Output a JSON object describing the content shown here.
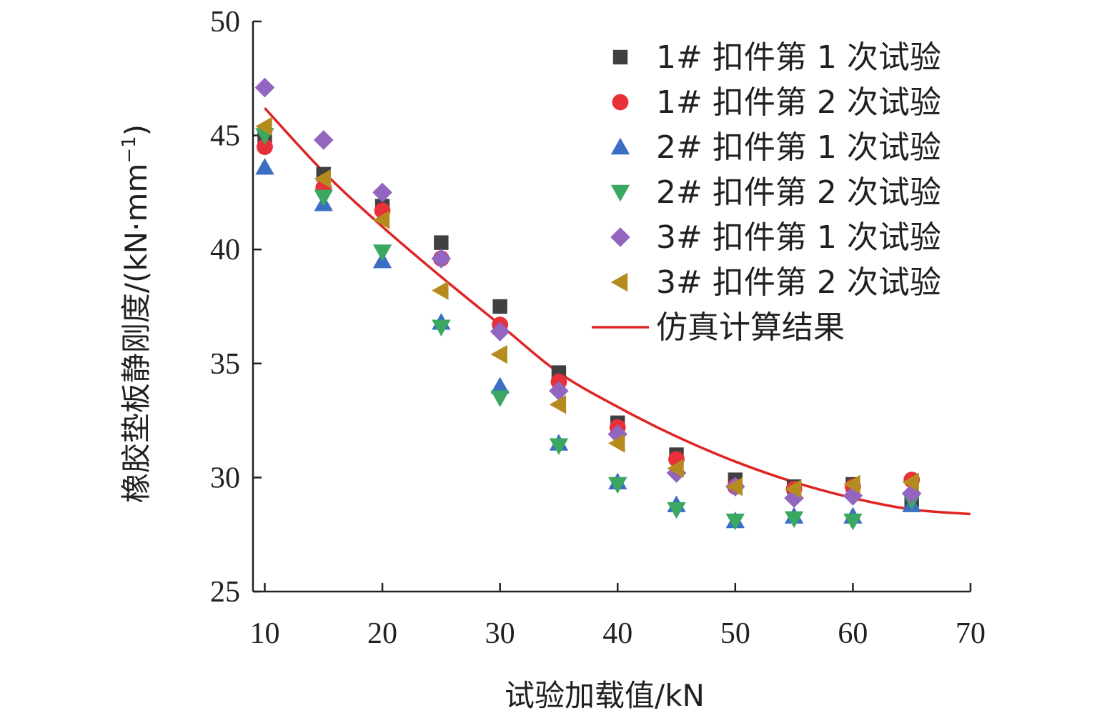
{
  "chart_data": {
    "type": "scatter",
    "xlabel": "试验加载值/kN",
    "ylabel_main": "橡胶垫板静刚度/(kN·mm",
    "ylabel_sup": "−1",
    "ylabel_close": ")",
    "xlim": [
      9,
      70
    ],
    "ylim": [
      25,
      50
    ],
    "xticks": [
      10,
      20,
      30,
      40,
      50,
      60,
      70
    ],
    "yticks": [
      25,
      30,
      35,
      40,
      45,
      50
    ],
    "legend_position": "top-right",
    "x": [
      10,
      15,
      20,
      25,
      30,
      35,
      40,
      45,
      50,
      55,
      60,
      65
    ],
    "series": [
      {
        "name": "1# 扣件第 1 次试验",
        "marker": "square",
        "color": "#404040",
        "values": [
          45.0,
          43.3,
          41.9,
          40.3,
          37.5,
          34.6,
          32.4,
          31.0,
          29.9,
          29.6,
          29.7,
          29.0
        ]
      },
      {
        "name": "1# 扣件第 2 次试验",
        "marker": "circle",
        "color": "#e8303a",
        "values": [
          44.5,
          42.7,
          41.7,
          39.6,
          36.7,
          34.2,
          32.2,
          30.8,
          29.6,
          29.5,
          29.6,
          29.9
        ]
      },
      {
        "name": "2# 扣件第 1 次试验",
        "marker": "triangle-up",
        "color": "#3a6fc4",
        "values": [
          43.6,
          42.0,
          39.5,
          36.8,
          34.0,
          31.5,
          29.8,
          28.8,
          28.1,
          28.3,
          28.3,
          28.8
        ]
      },
      {
        "name": "2# 扣件第 2 次试验",
        "marker": "triangle-down",
        "color": "#3aa860",
        "values": [
          45.0,
          42.3,
          39.9,
          36.6,
          33.5,
          31.4,
          29.7,
          28.6,
          28.1,
          28.2,
          28.1,
          29.0
        ]
      },
      {
        "name": "3# 扣件第 1 次试验",
        "marker": "diamond",
        "color": "#9265c0",
        "values": [
          47.1,
          44.8,
          42.5,
          39.6,
          36.4,
          33.8,
          31.9,
          30.2,
          29.6,
          29.1,
          29.2,
          29.3
        ]
      },
      {
        "name": "3# 扣件第 2 次试验",
        "marker": "triangle-left",
        "color": "#b58b1f",
        "values": [
          45.4,
          43.1,
          41.3,
          38.2,
          35.4,
          33.2,
          31.5,
          30.4,
          29.6,
          29.5,
          29.7,
          29.8
        ]
      }
    ],
    "line": {
      "name": "仿真计算结果",
      "color": "#e02424",
      "x": [
        10,
        15,
        20,
        25,
        30,
        35,
        40,
        45,
        50,
        55,
        60,
        65,
        70
      ],
      "values": [
        46.2,
        43.4,
        41.0,
        38.8,
        36.7,
        34.6,
        33.1,
        31.8,
        30.7,
        29.8,
        29.1,
        28.6,
        28.4
      ]
    }
  }
}
